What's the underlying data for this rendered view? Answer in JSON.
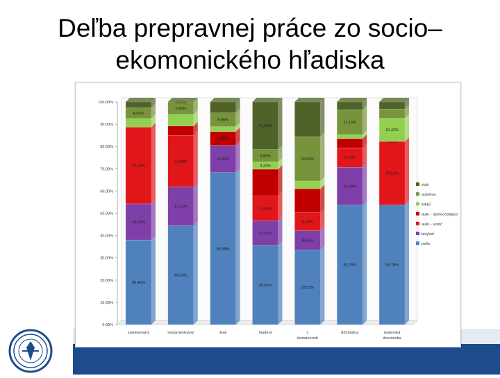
{
  "title": {
    "line1": "Deľba prepravnej práce zo socio–",
    "line2": "ekomonického hľadiska"
  },
  "colors": {
    "chodci": "#4f81bd",
    "bicykel": "#7f3fa8",
    "auto_vodic": "#e0161b",
    "auto_spolucestujuci": "#c00000",
    "mhd": "#92d050",
    "autobus": "#77933c",
    "vlak": "#4f6228",
    "footer": "#1d4b8c"
  },
  "chart_data": {
    "type": "bar",
    "stacked": true,
    "percent": true,
    "categories": [
      "zamestnaný",
      "nezamestnaný",
      "žiak",
      "študent",
      "v domácnosti",
      "dôchodca",
      "materská dovolenka"
    ],
    "ylim": [
      0,
      100
    ],
    "yticks": [
      "0,00%",
      "10,00%",
      "20,00%",
      "30,00%",
      "40,00%",
      "50,00%",
      "60,00%",
      "70,00%",
      "80,00%",
      "90,00%",
      "100,00%"
    ],
    "series": [
      {
        "name": "pešo",
        "key": "chodci",
        "values": [
          36.46,
          44.23,
          65.58,
          35.56,
          33.53,
          53.75,
          53.75
        ],
        "labels": [
          "36,46%",
          "44,23%",
          "65,58%",
          "35,56%",
          "33,53%",
          "53,75%",
          "53,75%"
        ]
      },
      {
        "name": "bicykel",
        "key": "bicykel",
        "values": [
          15.6,
          17.31,
          11.66,
          11.12,
          8.65,
          16.9,
          0
        ],
        "labels": [
          "15,60%",
          "17,31%",
          "11,66%",
          "11,12%",
          "8,65%",
          "16,90%",
          ""
        ]
      },
      {
        "name": "auto - vodič",
        "key": "auto_vodic",
        "values": [
          33.1,
          23.08,
          0,
          11.1,
          8.06,
          8.72,
          28.51
        ],
        "labels": [
          "33,10%",
          "23,08%",
          "",
          "11,10%",
          "8,06%",
          "8,72%",
          "28,51%"
        ]
      },
      {
        "name": "auto - spolucestujuci",
        "key": "auto_spolucestujuci",
        "values": [
          0.0,
          4.19,
          6.0,
          12.0,
          10.76,
          4.19,
          0.0
        ],
        "labels": [
          "",
          "",
          "6,00%",
          "",
          "",
          "",
          "0,00%"
        ]
      },
      {
        "name": "MHD",
        "key": "mhd",
        "values": [
          3.7,
          5.17,
          2.08,
          3.33,
          3.5,
          1.8,
          10.42
        ],
        "labels": [
          "",
          "",
          "",
          "3,33%",
          "",
          "",
          "10,42%"
        ]
      },
      {
        "name": "autobus",
        "key": "autobus",
        "values": [
          4.63,
          5.6,
          5.96,
          5.56,
          19.92,
          11.15,
          4.15
        ],
        "labels": [
          "4,63%",
          "5,60%",
          "5,96%",
          "5,56%",
          "19,92%",
          "11,15%",
          ""
        ]
      },
      {
        "name": "vlak",
        "key": "vlak",
        "values": [
          2.51,
          0.0,
          4.72,
          21.33,
          15.58,
          3.49,
          3.17
        ],
        "labels": [
          "",
          "0,00%",
          "",
          "21,33%",
          "",
          "",
          ""
        ]
      }
    ],
    "legend_position": "right",
    "grid": false
  }
}
